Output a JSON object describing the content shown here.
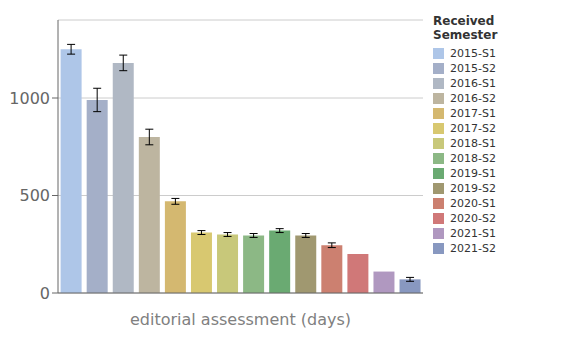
{
  "chart_data": {
    "type": "bar",
    "categories": [
      "2015-S1",
      "2015-S2",
      "2016-S1",
      "2016-S2",
      "2017-S1",
      "2017-S2",
      "2018-S1",
      "2018-S2",
      "2019-S1",
      "2019-S2",
      "2020-S1",
      "2020-S2",
      "2021-S1",
      "2021-S2"
    ],
    "values": [
      1250,
      990,
      1180,
      800,
      470,
      310,
      300,
      295,
      320,
      295,
      245,
      200,
      110,
      70
    ],
    "errors": [
      25,
      60,
      40,
      40,
      15,
      10,
      10,
      10,
      10,
      10,
      12,
      0,
      0,
      10
    ],
    "colors": [
      "#aec6e8",
      "#a4afc8",
      "#b0b8c4",
      "#bdb5a0",
      "#d4b870",
      "#d8c870",
      "#c8c87a",
      "#8cb885",
      "#6aaa72",
      "#a09870",
      "#cc8070",
      "#d07878",
      "#b098c0",
      "#8898c0"
    ],
    "xlabel": "editorial assessment (days)",
    "legend_title": "Received Semester",
    "legend": "right",
    "ylim": [
      0,
      1400
    ],
    "yticks": [
      0,
      500,
      1000
    ],
    "grid": true,
    "tick_labels": "y"
  }
}
